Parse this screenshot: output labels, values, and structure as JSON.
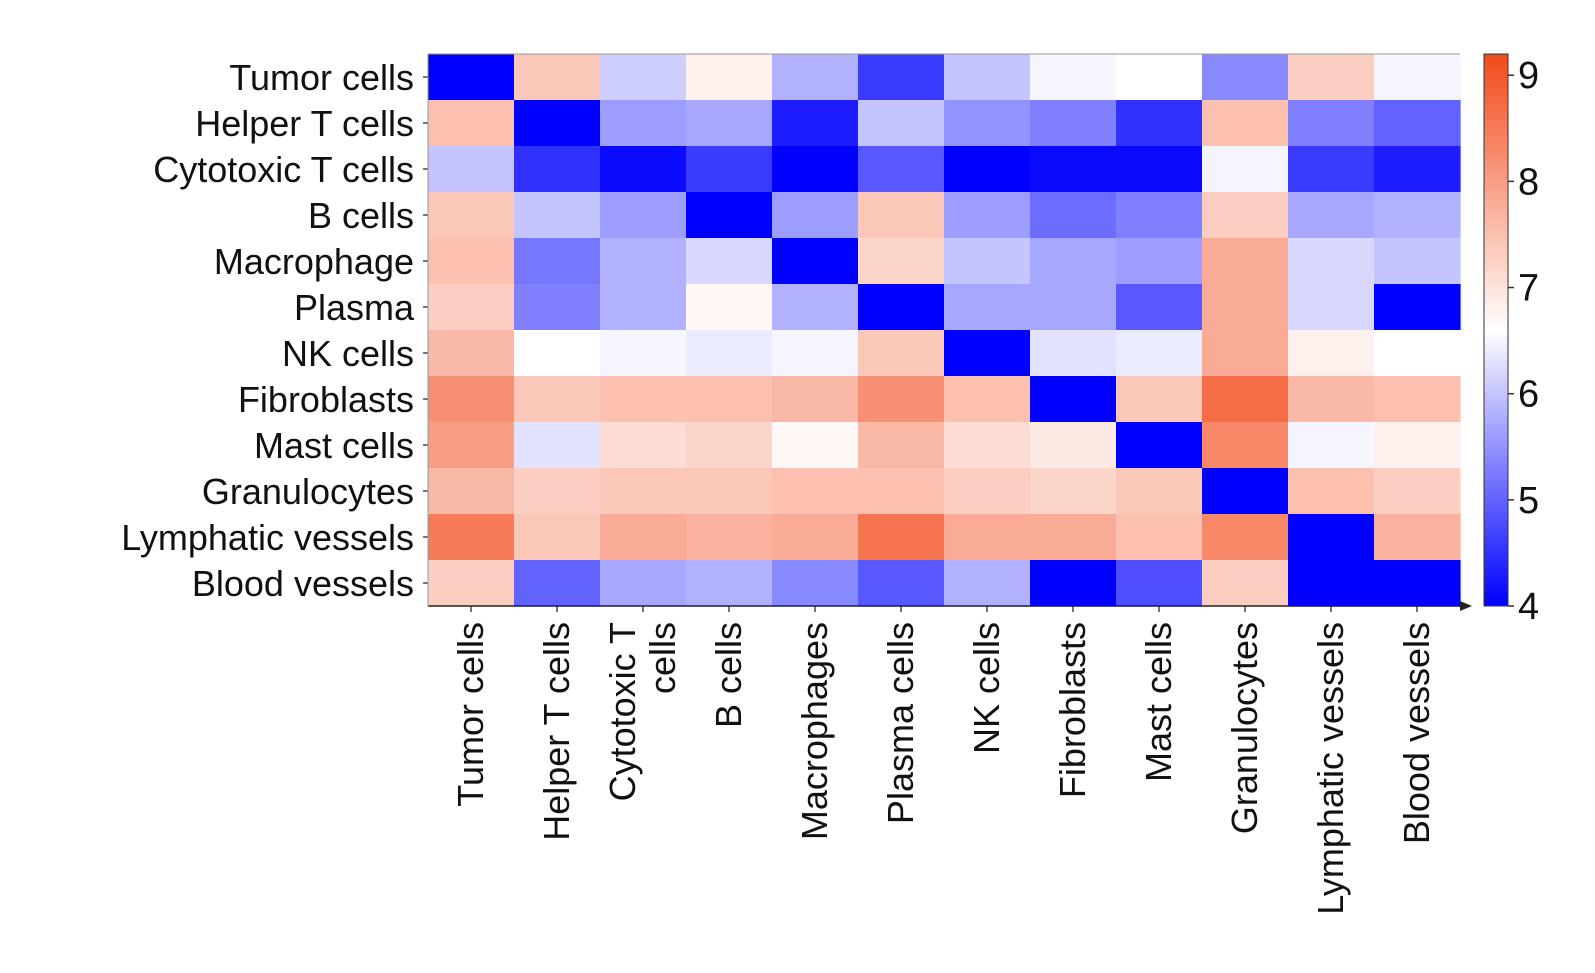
{
  "chart_data": {
    "type": "heatmap",
    "title": "",
    "xlabel": "",
    "ylabel": "",
    "rows": [
      "Tumor cells",
      "Helper T cells",
      "Cytotoxic T cells",
      "B cells",
      "Macrophage",
      "Plasma",
      "NK cells",
      "Fibroblasts",
      "Mast cells",
      "Granulocytes",
      "Lymphatic vessels",
      "Blood vessels"
    ],
    "columns": [
      [
        "Tumor cells"
      ],
      [
        "Helper T cells"
      ],
      [
        "Cytotoxic T",
        "cells"
      ],
      [
        "B cells"
      ],
      [
        "Macrophages"
      ],
      [
        "Plasma cells"
      ],
      [
        "NK cells"
      ],
      [
        "Fibroblasts"
      ],
      [
        "Mast cells"
      ],
      [
        "Granulocytes"
      ],
      [
        "Lymphatic vessels"
      ],
      [
        "Blood vessels"
      ]
    ],
    "values": [
      [
        4.0,
        7.4,
        6.1,
        6.8,
        5.8,
        4.6,
        6.0,
        6.5,
        6.6,
        5.4,
        7.3,
        6.5
      ],
      [
        7.5,
        4.0,
        5.6,
        5.7,
        4.3,
        6.0,
        5.5,
        5.3,
        4.5,
        7.5,
        5.3,
        5.0
      ],
      [
        6.0,
        4.5,
        4.1,
        4.6,
        4.0,
        4.9,
        4.0,
        4.1,
        4.1,
        6.5,
        4.6,
        4.3
      ],
      [
        7.4,
        6.0,
        5.6,
        4.0,
        5.6,
        7.4,
        5.6,
        5.1,
        5.3,
        7.3,
        5.7,
        5.8
      ],
      [
        7.5,
        5.2,
        5.8,
        6.2,
        4.0,
        7.2,
        6.0,
        5.7,
        5.6,
        7.8,
        6.2,
        6.0
      ],
      [
        7.3,
        5.3,
        5.8,
        6.7,
        5.8,
        4.0,
        5.7,
        5.7,
        4.9,
        7.8,
        6.2,
        4.0
      ],
      [
        7.6,
        6.6,
        6.5,
        6.4,
        6.5,
        7.4,
        4.0,
        6.3,
        6.4,
        7.8,
        6.8,
        6.6
      ],
      [
        8.2,
        7.4,
        7.5,
        7.5,
        7.6,
        8.2,
        7.5,
        4.0,
        7.4,
        8.7,
        7.6,
        7.5
      ],
      [
        8.0,
        6.3,
        7.1,
        7.2,
        6.7,
        7.6,
        7.1,
        6.9,
        4.0,
        8.3,
        6.5,
        6.8
      ],
      [
        7.6,
        7.3,
        7.4,
        7.4,
        7.5,
        7.5,
        7.3,
        7.2,
        7.4,
        4.0,
        7.5,
        7.3
      ],
      [
        8.5,
        7.4,
        7.8,
        7.7,
        7.8,
        8.6,
        7.8,
        7.8,
        7.5,
        8.3,
        4.0,
        7.7
      ],
      [
        7.3,
        5.0,
        5.7,
        5.8,
        5.4,
        4.9,
        5.8,
        4.0,
        4.8,
        7.3,
        4.0,
        4.0
      ]
    ],
    "colorbar": {
      "min": 4,
      "max": 9.2,
      "ticks": [
        "4",
        "5",
        "6",
        "7",
        "8",
        "9"
      ],
      "low_color": "#0000ff",
      "mid_color": "#ffffff",
      "high_color": "#f24a1a"
    }
  }
}
